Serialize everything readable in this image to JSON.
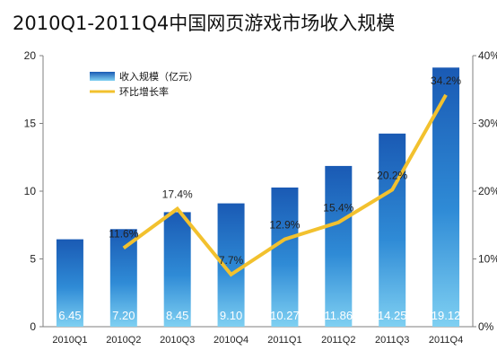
{
  "chart_data": {
    "type": "bar",
    "title": "2010Q1-2011Q4中国网页游戏市场收入规模",
    "categories": [
      "2010Q1",
      "2010Q2",
      "2010Q3",
      "2010Q4",
      "2011Q1",
      "2011Q2",
      "2011Q3",
      "2011Q4"
    ],
    "series": [
      {
        "name": "收入规模（亿元）",
        "type": "bar",
        "axis": "left",
        "values": [
          6.45,
          7.2,
          8.45,
          9.1,
          10.27,
          11.86,
          14.25,
          19.12
        ],
        "labels": [
          "6.45",
          "7.20",
          "8.45",
          "9.10",
          "10.27",
          "11.86",
          "14.25",
          "19.12"
        ],
        "color": "#1f6fc0"
      },
      {
        "name": "环比增长率",
        "type": "line",
        "axis": "right",
        "values": [
          null,
          11.6,
          17.4,
          7.7,
          12.9,
          15.4,
          20.2,
          34.2
        ],
        "labels": [
          "",
          "11.6%",
          "17.4%",
          "7.7%",
          "12.9%",
          "15.4%",
          "20.2%",
          "34.2%"
        ],
        "color": "#f2c12e"
      }
    ],
    "y_left": {
      "range": [
        0,
        20
      ],
      "ticks": [
        "0",
        "5",
        "10",
        "15",
        "20"
      ]
    },
    "y_right": {
      "range": [
        0,
        40
      ],
      "unit": "%",
      "ticks": [
        "0%",
        "10%",
        "20%",
        "30%",
        "40%"
      ]
    },
    "legend": "top-left",
    "grid": false
  }
}
